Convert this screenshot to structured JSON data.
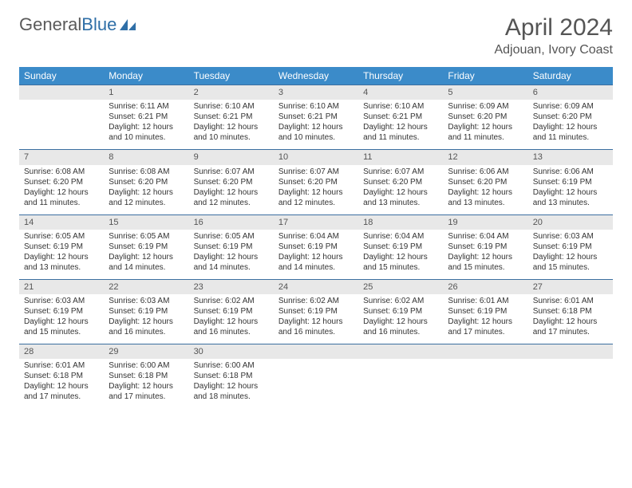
{
  "logo": {
    "text1": "General",
    "text2": "Blue"
  },
  "title": "April 2024",
  "location": "Adjouan, Ivory Coast",
  "colors": {
    "header_bg": "#3b8bc9",
    "header_text": "#ffffff",
    "daynum_bg": "#e8e8e8",
    "daynum_border": "#3b6fa0",
    "body_text": "#333333",
    "title_text": "#555555"
  },
  "weekdays": [
    "Sunday",
    "Monday",
    "Tuesday",
    "Wednesday",
    "Thursday",
    "Friday",
    "Saturday"
  ],
  "start_offset": 1,
  "days": [
    {
      "n": "1",
      "sr": "6:11 AM",
      "ss": "6:21 PM",
      "dl": "12 hours and 10 minutes."
    },
    {
      "n": "2",
      "sr": "6:10 AM",
      "ss": "6:21 PM",
      "dl": "12 hours and 10 minutes."
    },
    {
      "n": "3",
      "sr": "6:10 AM",
      "ss": "6:21 PM",
      "dl": "12 hours and 10 minutes."
    },
    {
      "n": "4",
      "sr": "6:10 AM",
      "ss": "6:21 PM",
      "dl": "12 hours and 11 minutes."
    },
    {
      "n": "5",
      "sr": "6:09 AM",
      "ss": "6:20 PM",
      "dl": "12 hours and 11 minutes."
    },
    {
      "n": "6",
      "sr": "6:09 AM",
      "ss": "6:20 PM",
      "dl": "12 hours and 11 minutes."
    },
    {
      "n": "7",
      "sr": "6:08 AM",
      "ss": "6:20 PM",
      "dl": "12 hours and 11 minutes."
    },
    {
      "n": "8",
      "sr": "6:08 AM",
      "ss": "6:20 PM",
      "dl": "12 hours and 12 minutes."
    },
    {
      "n": "9",
      "sr": "6:07 AM",
      "ss": "6:20 PM",
      "dl": "12 hours and 12 minutes."
    },
    {
      "n": "10",
      "sr": "6:07 AM",
      "ss": "6:20 PM",
      "dl": "12 hours and 12 minutes."
    },
    {
      "n": "11",
      "sr": "6:07 AM",
      "ss": "6:20 PM",
      "dl": "12 hours and 13 minutes."
    },
    {
      "n": "12",
      "sr": "6:06 AM",
      "ss": "6:20 PM",
      "dl": "12 hours and 13 minutes."
    },
    {
      "n": "13",
      "sr": "6:06 AM",
      "ss": "6:19 PM",
      "dl": "12 hours and 13 minutes."
    },
    {
      "n": "14",
      "sr": "6:05 AM",
      "ss": "6:19 PM",
      "dl": "12 hours and 13 minutes."
    },
    {
      "n": "15",
      "sr": "6:05 AM",
      "ss": "6:19 PM",
      "dl": "12 hours and 14 minutes."
    },
    {
      "n": "16",
      "sr": "6:05 AM",
      "ss": "6:19 PM",
      "dl": "12 hours and 14 minutes."
    },
    {
      "n": "17",
      "sr": "6:04 AM",
      "ss": "6:19 PM",
      "dl": "12 hours and 14 minutes."
    },
    {
      "n": "18",
      "sr": "6:04 AM",
      "ss": "6:19 PM",
      "dl": "12 hours and 15 minutes."
    },
    {
      "n": "19",
      "sr": "6:04 AM",
      "ss": "6:19 PM",
      "dl": "12 hours and 15 minutes."
    },
    {
      "n": "20",
      "sr": "6:03 AM",
      "ss": "6:19 PM",
      "dl": "12 hours and 15 minutes."
    },
    {
      "n": "21",
      "sr": "6:03 AM",
      "ss": "6:19 PM",
      "dl": "12 hours and 15 minutes."
    },
    {
      "n": "22",
      "sr": "6:03 AM",
      "ss": "6:19 PM",
      "dl": "12 hours and 16 minutes."
    },
    {
      "n": "23",
      "sr": "6:02 AM",
      "ss": "6:19 PM",
      "dl": "12 hours and 16 minutes."
    },
    {
      "n": "24",
      "sr": "6:02 AM",
      "ss": "6:19 PM",
      "dl": "12 hours and 16 minutes."
    },
    {
      "n": "25",
      "sr": "6:02 AM",
      "ss": "6:19 PM",
      "dl": "12 hours and 16 minutes."
    },
    {
      "n": "26",
      "sr": "6:01 AM",
      "ss": "6:19 PM",
      "dl": "12 hours and 17 minutes."
    },
    {
      "n": "27",
      "sr": "6:01 AM",
      "ss": "6:18 PM",
      "dl": "12 hours and 17 minutes."
    },
    {
      "n": "28",
      "sr": "6:01 AM",
      "ss": "6:18 PM",
      "dl": "12 hours and 17 minutes."
    },
    {
      "n": "29",
      "sr": "6:00 AM",
      "ss": "6:18 PM",
      "dl": "12 hours and 17 minutes."
    },
    {
      "n": "30",
      "sr": "6:00 AM",
      "ss": "6:18 PM",
      "dl": "12 hours and 18 minutes."
    }
  ],
  "labels": {
    "sunrise": "Sunrise:",
    "sunset": "Sunset:",
    "daylight": "Daylight:"
  }
}
